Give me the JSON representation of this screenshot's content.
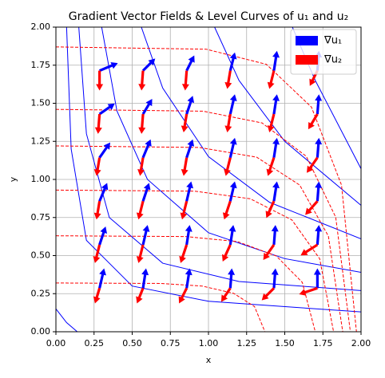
{
  "chart_data": {
    "type": "quiver",
    "title": "Gradient Vector Fields & Level Curves of u₁ and u₂",
    "xlabel": "x",
    "ylabel": "y",
    "xlim": [
      0,
      2
    ],
    "ylim": [
      0,
      2
    ],
    "xticks": [
      {
        "value": 0,
        "label": "0.00"
      },
      {
        "value": 0.25,
        "label": "0.25"
      },
      {
        "value": 0.5,
        "label": "0.50"
      },
      {
        "value": 0.75,
        "label": "0.75"
      },
      {
        "value": 1,
        "label": "1.00"
      },
      {
        "value": 1.25,
        "label": "1.25"
      },
      {
        "value": 1.5,
        "label": "1.50"
      },
      {
        "value": 1.75,
        "label": "1.75"
      },
      {
        "value": 2,
        "label": "2.00"
      }
    ],
    "yticks": [
      {
        "value": 0,
        "label": "0.00"
      },
      {
        "value": 0.25,
        "label": "0.25"
      },
      {
        "value": 0.5,
        "label": "0.50"
      },
      {
        "value": 0.75,
        "label": "0.75"
      },
      {
        "value": 1,
        "label": "1.00"
      },
      {
        "value": 1.25,
        "label": "1.25"
      },
      {
        "value": 1.5,
        "label": "1.50"
      },
      {
        "value": 1.75,
        "label": "1.75"
      },
      {
        "value": 2,
        "label": "2.00"
      }
    ],
    "grid": true,
    "legend": "upper right",
    "x": [
      0.286,
      0.571,
      0.857,
      1.143,
      1.429,
      1.714
    ],
    "y": [
      0.286,
      0.571,
      0.857,
      1.143,
      1.429,
      1.714
    ],
    "series": [
      {
        "name": "∇u₁",
        "color": "#0000ff",
        "dashed": false,
        "u": [
          [
            0.03,
            0.02,
            0.02,
            0.01,
            0.01,
            0.0
          ],
          [
            0.04,
            0.03,
            0.02,
            0.02,
            0.01,
            0.01
          ],
          [
            0.05,
            0.04,
            0.03,
            0.03,
            0.02,
            0.01
          ],
          [
            0.07,
            0.05,
            0.04,
            0.03,
            0.02,
            0.01
          ],
          [
            0.1,
            0.06,
            0.04,
            0.03,
            0.02,
            0.01
          ],
          [
            0.12,
            0.08,
            0.05,
            0.03,
            0.02,
            0.01
          ]
        ],
        "v": [
          [
            0.13,
            0.13,
            0.13,
            0.13,
            0.13,
            0.13
          ],
          [
            0.12,
            0.13,
            0.13,
            0.13,
            0.13,
            0.13
          ],
          [
            0.12,
            0.12,
            0.13,
            0.13,
            0.13,
            0.13
          ],
          [
            0.1,
            0.12,
            0.12,
            0.13,
            0.13,
            0.13
          ],
          [
            0.07,
            0.1,
            0.12,
            0.13,
            0.13,
            0.13
          ],
          [
            0.05,
            0.08,
            0.1,
            0.12,
            0.13,
            0.13
          ]
        ],
        "levels": [
          {
            "x": [
              0,
              0.07,
              0.14
            ],
            "y": [
              0.15,
              0.06,
              0
            ]
          },
          {
            "x": [
              0.07,
              0.1,
              0.2,
              0.5,
              1,
              2
            ],
            "y": [
              2,
              1.2,
              0.6,
              0.3,
              0.2,
              0.13
            ]
          },
          {
            "x": [
              0.15,
              0.2,
              0.35,
              0.7,
              1.2,
              2
            ],
            "y": [
              2,
              1.3,
              0.75,
              0.45,
              0.33,
              0.27
            ]
          },
          {
            "x": [
              0.3,
              0.4,
              0.6,
              1,
              1.5,
              2
            ],
            "y": [
              2,
              1.45,
              1.0,
              0.65,
              0.48,
              0.39
            ]
          },
          {
            "x": [
              0.56,
              0.7,
              1,
              1.4,
              2
            ],
            "y": [
              2,
              1.6,
              1.15,
              0.85,
              0.61
            ]
          },
          {
            "x": [
              1.04,
              1.2,
              1.5,
              2
            ],
            "y": [
              2,
              1.65,
              1.25,
              0.83
            ]
          },
          {
            "x": [
              1.55,
              1.7,
              2
            ],
            "y": [
              2,
              1.65,
              1.07
            ]
          }
        ]
      },
      {
        "name": "∇u₂",
        "color": "#ff0000",
        "dashed": true,
        "u": [
          [
            -0.03,
            -0.04,
            -0.05,
            -0.06,
            -0.08,
            -0.12
          ],
          [
            -0.03,
            -0.03,
            -0.04,
            -0.05,
            -0.07,
            -0.11
          ],
          [
            -0.02,
            -0.03,
            -0.03,
            -0.04,
            -0.05,
            -0.08
          ],
          [
            -0.02,
            -0.02,
            -0.02,
            -0.03,
            -0.04,
            -0.07
          ],
          [
            -0.01,
            -0.01,
            -0.02,
            -0.02,
            -0.03,
            -0.06
          ],
          [
            0,
            -0.01,
            -0.01,
            -0.02,
            -0.03,
            -0.05
          ]
        ],
        "v": [
          [
            -0.1,
            -0.1,
            -0.1,
            -0.09,
            -0.08,
            -0.04
          ],
          [
            -0.12,
            -0.12,
            -0.12,
            -0.11,
            -0.1,
            -0.07
          ],
          [
            -0.12,
            -0.12,
            -0.12,
            -0.12,
            -0.11,
            -0.09
          ],
          [
            -0.12,
            -0.12,
            -0.12,
            -0.12,
            -0.12,
            -0.1
          ],
          [
            -0.13,
            -0.13,
            -0.12,
            -0.12,
            -0.12,
            -0.1
          ],
          [
            -0.13,
            -0.13,
            -0.13,
            -0.12,
            -0.12,
            -0.1
          ]
        ],
        "levels": [
          {
            "x": [
              0,
              0.685,
              0.959,
              1.165,
              1.302,
              1.37
            ],
            "y": [
              0.32,
              0.317,
              0.3,
              0.252,
              0.165,
              0
            ]
          },
          {
            "x": [
              0,
              0.85,
              1.19,
              1.445,
              1.615,
              1.7
            ],
            "y": [
              0.63,
              0.625,
              0.592,
              0.497,
              0.324,
              0
            ]
          },
          {
            "x": [
              0,
              0.91,
              1.274,
              1.547,
              1.729,
              1.82
            ],
            "y": [
              0.93,
              0.923,
              0.873,
              0.734,
              0.479,
              0
            ]
          },
          {
            "x": [
              0,
              0.94,
              1.316,
              1.598,
              1.786,
              1.88
            ],
            "y": [
              1.22,
              1.21,
              1.146,
              0.963,
              0.628,
              0
            ]
          },
          {
            "x": [
              0,
              0.965,
              1.351,
              1.641,
              1.834,
              1.93
            ],
            "y": [
              1.46,
              1.448,
              1.371,
              1.152,
              0.752,
              0
            ]
          },
          {
            "x": [
              0,
              0.985,
              1.379,
              1.675,
              1.872,
              1.97
            ],
            "y": [
              1.87,
              1.855,
              1.756,
              1.475,
              0.963,
              0
            ]
          }
        ]
      }
    ]
  }
}
